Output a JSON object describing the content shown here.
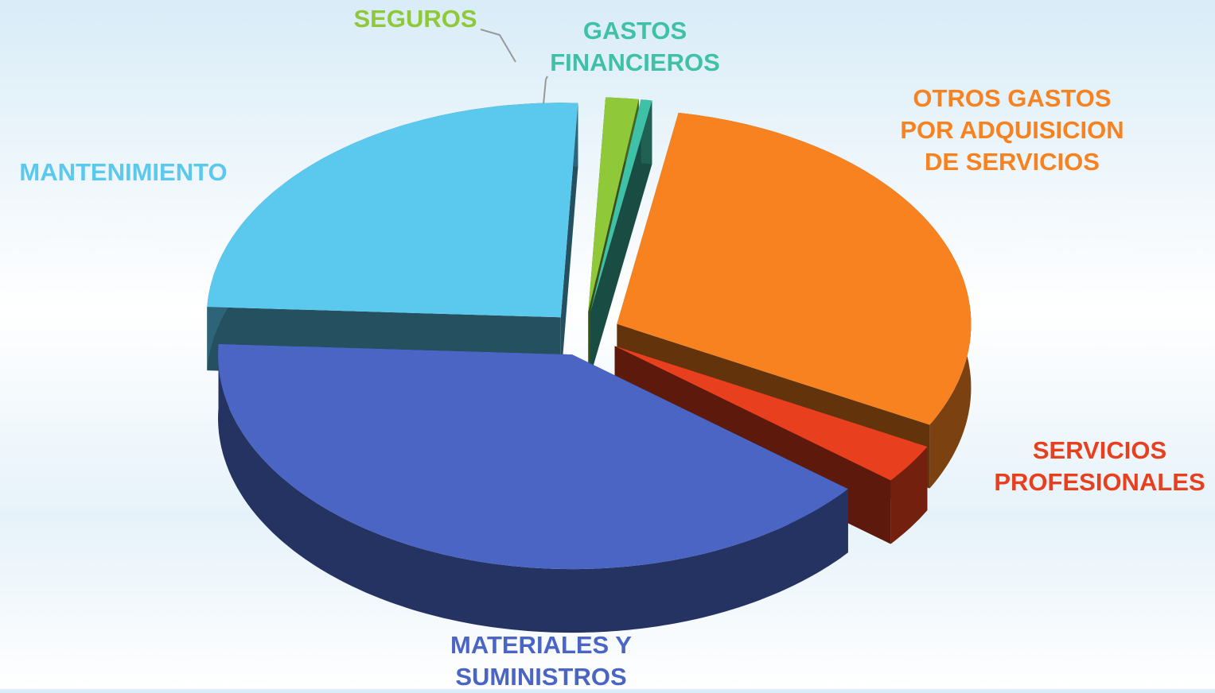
{
  "chart_data": {
    "type": "pie",
    "categories": [
      "OTROS GASTOS POR ADQUISICION DE SERVICIOS",
      "SERVICIOS PROFESIONALES",
      "MATERIALES Y SUMINISTROS",
      "MANTENIMIENTO",
      "SEGUROS",
      "GASTOS FINANCIEROS"
    ],
    "values": [
      30,
      3,
      40,
      25,
      1.5,
      0.5
    ],
    "colors": [
      "#f7821f",
      "#e8401e",
      "#4a65c4",
      "#5bc8ee",
      "#8fc93a",
      "#3fc1a8"
    ]
  }
}
